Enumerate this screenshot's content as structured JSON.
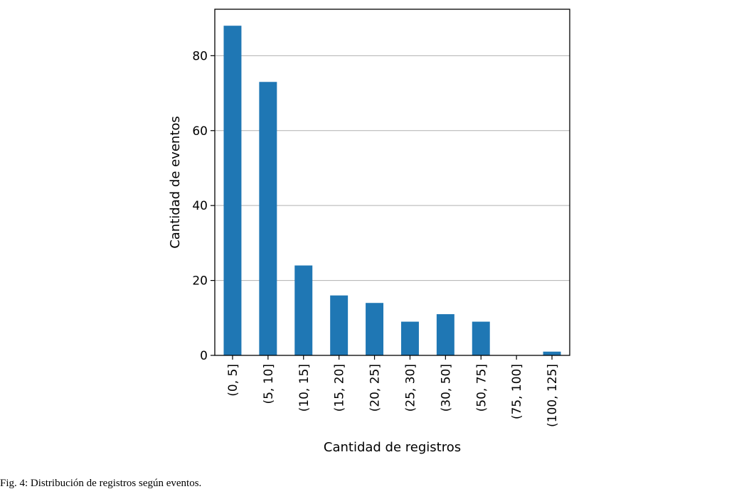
{
  "chart_data": {
    "type": "bar",
    "categories": [
      "(0, 5]",
      "(5, 10]",
      "(10, 15]",
      "(15, 20]",
      "(20, 25]",
      "(25, 30]",
      "(30, 50]",
      "(50, 75]",
      "(75, 100]",
      "(100, 125]"
    ],
    "values": [
      88,
      73,
      24,
      16,
      14,
      9,
      11,
      9,
      0,
      1
    ],
    "xlabel": "Cantidad de registros",
    "ylabel": "Cantidad de eventos",
    "ylim": [
      0,
      92.4
    ],
    "yticks": [
      0,
      20,
      40,
      60,
      80
    ],
    "grid": "horizontal",
    "bar_color": "#1f77b4"
  },
  "caption": "Fig. 4: Distribución de registros según eventos."
}
